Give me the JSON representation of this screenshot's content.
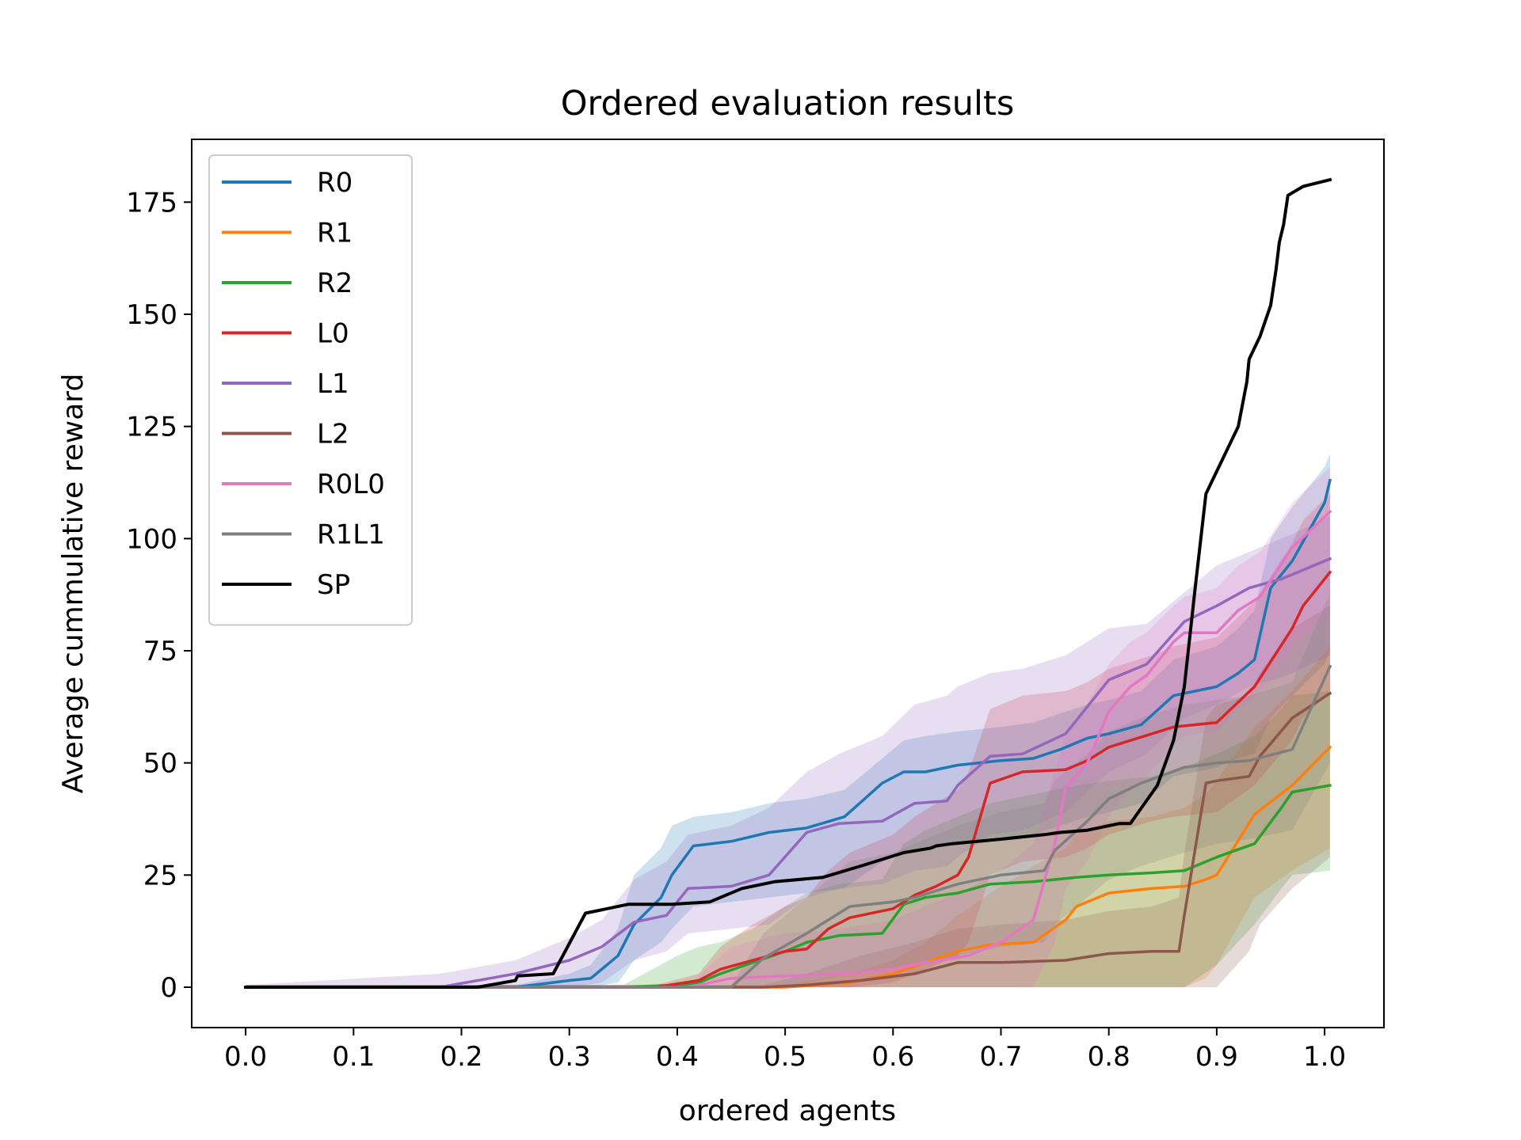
{
  "chart_data": {
    "type": "line",
    "title": "Ordered evaluation results",
    "xlabel": "ordered agents",
    "ylabel": "Average cummulative reward",
    "xlim": [
      -0.05,
      1.055
    ],
    "ylim": [
      -9,
      189
    ],
    "xticks": [
      0.0,
      0.1,
      0.2,
      0.3,
      0.4,
      0.5,
      0.6,
      0.7,
      0.8,
      0.9,
      1.0
    ],
    "xtick_labels": [
      "0.0",
      "0.1",
      "0.2",
      "0.3",
      "0.4",
      "0.5",
      "0.6",
      "0.7",
      "0.8",
      "0.9",
      "1.0"
    ],
    "yticks": [
      0,
      25,
      50,
      75,
      100,
      125,
      150,
      175
    ],
    "ytick_labels": [
      "0",
      "25",
      "50",
      "75",
      "100",
      "125",
      "150",
      "175"
    ],
    "grid": false,
    "legend_position": "top-left",
    "series": [
      {
        "name": "R0",
        "color": "#1f77b4",
        "x": [
          0,
          0.25,
          0.3,
          0.32,
          0.345,
          0.36,
          0.385,
          0.395,
          0.415,
          0.45,
          0.485,
          0.52,
          0.555,
          0.59,
          0.61,
          0.63,
          0.66,
          0.7,
          0.73,
          0.755,
          0.78,
          0.8,
          0.83,
          0.86,
          0.9,
          0.92,
          0.935,
          0.95,
          0.97,
          1.0,
          1.005
        ],
        "y": [
          0,
          0,
          1.5,
          2,
          7,
          14,
          20,
          25,
          31.5,
          32.5,
          34.5,
          35.5,
          38,
          45.5,
          48,
          48,
          49.5,
          50.5,
          51,
          53,
          55.5,
          56.5,
          58.5,
          65,
          67,
          70,
          73,
          89,
          95,
          108,
          113
        ],
        "lower": [
          0,
          0,
          0,
          0,
          1,
          6,
          10,
          13,
          18,
          19,
          20,
          21,
          22,
          28,
          30,
          31,
          32,
          33,
          34,
          36,
          38,
          39,
          41,
          47,
          49,
          51,
          52,
          60,
          65,
          72,
          75
        ],
        "upper": [
          0.5,
          0.5,
          3,
          5,
          13,
          25,
          31,
          36,
          38,
          39,
          41,
          42,
          44,
          51,
          55,
          56,
          57,
          58,
          59,
          61,
          63,
          64,
          66,
          73,
          76,
          80,
          84,
          100,
          107,
          116,
          119
        ]
      },
      {
        "name": "R1",
        "color": "#ff7f0e",
        "x": [
          0,
          0.5,
          0.56,
          0.6,
          0.63,
          0.66,
          0.69,
          0.73,
          0.76,
          0.77,
          0.8,
          0.84,
          0.87,
          0.89,
          0.9,
          0.935,
          0.97,
          1.005
        ],
        "y": [
          0,
          0,
          1,
          3,
          5.5,
          8,
          9.5,
          10,
          15,
          18,
          21,
          22,
          22.5,
          24,
          25,
          38.5,
          45,
          53.5
        ],
        "lower": [
          0,
          0,
          0,
          0,
          0,
          0,
          0,
          0,
          0,
          0,
          0,
          0,
          0,
          2,
          5,
          20,
          26,
          31
        ],
        "upper": [
          0,
          0.5,
          3,
          6,
          10,
          16,
          21,
          27,
          31,
          34,
          37,
          38,
          40,
          43,
          46,
          58,
          66,
          76
        ]
      },
      {
        "name": "R2",
        "color": "#2ca02c",
        "x": [
          0,
          0.35,
          0.4,
          0.42,
          0.44,
          0.47,
          0.5,
          0.52,
          0.55,
          0.59,
          0.61,
          0.63,
          0.66,
          0.69,
          0.73,
          0.77,
          0.8,
          0.84,
          0.87,
          0.9,
          0.935,
          0.96,
          0.97,
          1.005
        ],
        "y": [
          0,
          0,
          0.5,
          1,
          3,
          5.5,
          8,
          10,
          11.5,
          12,
          18.5,
          20,
          21,
          23,
          23.5,
          24.5,
          25,
          25.5,
          26,
          29,
          32,
          40,
          43.5,
          45
        ],
        "lower": [
          0,
          0,
          0,
          0,
          0,
          0,
          0,
          0,
          0,
          0,
          0,
          0,
          0,
          0,
          0,
          0,
          0,
          0,
          0,
          5,
          14,
          22,
          25,
          26
        ],
        "upper": [
          0.5,
          0.5,
          7,
          9,
          10,
          13,
          18,
          21,
          23,
          24,
          32,
          35,
          38,
          41,
          43,
          45,
          46,
          47,
          49,
          52,
          56,
          62,
          65,
          66
        ]
      },
      {
        "name": "L0",
        "color": "#d62728",
        "x": [
          0,
          0.38,
          0.42,
          0.44,
          0.47,
          0.5,
          0.52,
          0.54,
          0.56,
          0.6,
          0.62,
          0.64,
          0.66,
          0.67,
          0.69,
          0.72,
          0.76,
          0.78,
          0.8,
          0.84,
          0.86,
          0.9,
          0.935,
          0.97,
          0.98,
          1.005
        ],
        "y": [
          0,
          0,
          1.5,
          4,
          6,
          8,
          8.5,
          13,
          15.5,
          17.5,
          20.5,
          22.5,
          25,
          29,
          45.5,
          48,
          48.5,
          50.5,
          53.5,
          56.5,
          58,
          59,
          67,
          80,
          85,
          92.5
        ],
        "lower": [
          0,
          0,
          0,
          0,
          0,
          0,
          0,
          0,
          0,
          1,
          3,
          5,
          7,
          10,
          25,
          28,
          29,
          31,
          34,
          37,
          38,
          39,
          45,
          55,
          60,
          66
        ],
        "upper": [
          0.5,
          0.5,
          3,
          9,
          14,
          18,
          20,
          26,
          30,
          34,
          38,
          41,
          44,
          48,
          62,
          65,
          66,
          68,
          71,
          74,
          76,
          78,
          86,
          99,
          104,
          110
        ]
      },
      {
        "name": "L1",
        "color": "#9467bd",
        "x": [
          0,
          0.18,
          0.25,
          0.3,
          0.33,
          0.36,
          0.39,
          0.41,
          0.45,
          0.485,
          0.52,
          0.55,
          0.59,
          0.62,
          0.65,
          0.66,
          0.69,
          0.72,
          0.76,
          0.8,
          0.835,
          0.87,
          0.9,
          0.93,
          0.96,
          0.97,
          1.005
        ],
        "y": [
          0,
          0,
          3,
          6,
          9,
          14.5,
          16,
          22,
          22.5,
          25,
          34.5,
          36.5,
          37,
          41,
          41.5,
          45,
          51.5,
          52,
          56.5,
          68.5,
          72,
          81.5,
          85,
          89,
          91,
          92,
          95.5
        ],
        "lower": [
          0,
          0,
          0,
          0,
          1,
          6,
          8,
          12,
          13,
          14,
          20,
          22,
          23,
          26,
          27,
          29,
          34,
          35,
          39,
          48,
          52,
          60,
          63,
          67,
          69,
          70,
          74
        ],
        "upper": [
          0.5,
          3,
          6,
          11,
          15,
          24,
          28,
          34,
          36,
          40,
          48,
          52,
          56,
          63,
          65,
          67,
          70,
          71,
          74,
          80,
          81,
          88,
          94,
          97,
          100,
          101,
          105
        ]
      },
      {
        "name": "L2",
        "color": "#8c564b",
        "x": [
          0,
          0.48,
          0.52,
          0.57,
          0.62,
          0.66,
          0.7,
          0.76,
          0.8,
          0.84,
          0.865,
          0.87,
          0.89,
          0.9,
          0.93,
          0.94,
          0.97,
          1.005
        ],
        "y": [
          0,
          0,
          0.5,
          1.5,
          3,
          5.5,
          5.5,
          6,
          7.5,
          8,
          8,
          16,
          45.5,
          46,
          47,
          51.5,
          60,
          65.5
        ],
        "lower": [
          0,
          0,
          0,
          0,
          0,
          0,
          0,
          0,
          0,
          0,
          0,
          0,
          0,
          0,
          8,
          14,
          22,
          29
        ],
        "upper": [
          0.5,
          0.5,
          3,
          7,
          10,
          13,
          14,
          15,
          17,
          18,
          20,
          30,
          60,
          63,
          65,
          70,
          80,
          85
        ]
      },
      {
        "name": "R0L0",
        "color": "#e377c2",
        "x": [
          0,
          0.41,
          0.45,
          0.5,
          0.55,
          0.6,
          0.63,
          0.67,
          0.7,
          0.73,
          0.75,
          0.76,
          0.78,
          0.8,
          0.82,
          0.835,
          0.86,
          0.87,
          0.9,
          0.92,
          0.94,
          0.97,
          1.005
        ],
        "y": [
          0,
          0,
          2,
          2.5,
          3,
          4,
          5.5,
          7,
          10,
          15,
          32,
          44.5,
          50,
          61.5,
          67,
          69.5,
          77,
          79,
          79,
          84,
          87,
          98,
          106
        ],
        "lower": [
          0,
          0,
          0,
          0,
          0,
          0,
          0,
          0,
          0,
          0,
          10,
          22,
          28,
          38,
          44,
          47,
          54,
          56,
          57,
          62,
          66,
          76,
          83
        ],
        "upper": [
          0.5,
          0.5,
          9,
          12,
          13,
          15,
          18,
          22,
          26,
          32,
          48,
          57,
          63,
          72,
          77,
          79,
          85,
          87,
          89,
          94,
          97,
          108,
          116
        ]
      },
      {
        "name": "R1L1",
        "color": "#7f7f7f",
        "x": [
          0,
          0.45,
          0.48,
          0.52,
          0.56,
          0.6,
          0.62,
          0.66,
          0.7,
          0.74,
          0.75,
          0.78,
          0.8,
          0.83,
          0.87,
          0.9,
          0.93,
          0.97,
          1.005
        ],
        "y": [
          0,
          0,
          6.5,
          12,
          18,
          19,
          20,
          23,
          25,
          26,
          30.5,
          37,
          42,
          45.5,
          49,
          50,
          50.5,
          53,
          71.5
        ],
        "lower": [
          0,
          0,
          0,
          1,
          3,
          4,
          5,
          7,
          9,
          10,
          14,
          20,
          24,
          27,
          30,
          32,
          33,
          35,
          50
        ],
        "upper": [
          0.5,
          0.5,
          12,
          20,
          28,
          30,
          32,
          36,
          39,
          41,
          46,
          52,
          57,
          60,
          63,
          64,
          65,
          68,
          88
        ]
      },
      {
        "name": "SP",
        "color": "#000000",
        "x": [
          0,
          0.215,
          0.25,
          0.252,
          0.285,
          0.315,
          0.355,
          0.395,
          0.43,
          0.46,
          0.49,
          0.535,
          0.57,
          0.61,
          0.635,
          0.64,
          0.655,
          0.7,
          0.74,
          0.755,
          0.78,
          0.81,
          0.82,
          0.845,
          0.86,
          0.87,
          0.88,
          0.89,
          0.92,
          0.928,
          0.93,
          0.94,
          0.95,
          0.955,
          0.958,
          0.962,
          0.966,
          0.98,
          1.005
        ],
        "y": [
          0,
          0,
          1.5,
          2.5,
          3,
          16.5,
          18.5,
          18.5,
          19,
          22,
          23.5,
          24.5,
          27,
          30,
          31,
          31.5,
          32,
          33,
          34,
          34.5,
          35,
          36.5,
          36.5,
          45,
          55,
          67,
          89,
          110,
          125,
          135,
          140,
          145,
          152,
          160,
          166,
          170,
          176.5,
          178.5,
          180
        ]
      }
    ]
  }
}
